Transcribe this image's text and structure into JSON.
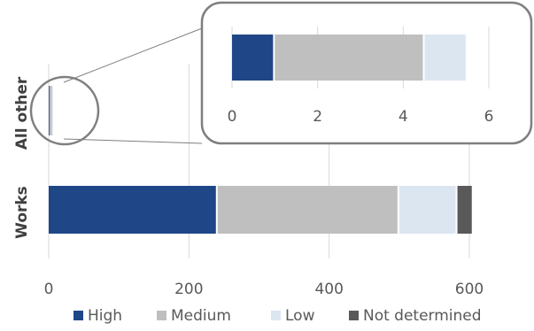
{
  "chart_data": [
    {
      "type": "bar",
      "orientation": "horizontal",
      "stacked": true,
      "categories": [
        "All other",
        "Works"
      ],
      "series": [
        {
          "name": "High",
          "values": [
            1,
            241
          ]
        },
        {
          "name": "Medium",
          "values": [
            3.5,
            259
          ]
        },
        {
          "name": "Low",
          "values": [
            1,
            83
          ]
        },
        {
          "name": "Not determined",
          "values": [
            0,
            23
          ]
        }
      ],
      "xlim": [
        0,
        650
      ],
      "x_ticks": [
        "0",
        "200",
        "400",
        "600"
      ],
      "grid": true,
      "legend": "bottom"
    },
    {
      "type": "bar",
      "orientation": "horizontal",
      "stacked": true,
      "role": "inset",
      "categories": [
        "All other"
      ],
      "series": [
        {
          "name": "High",
          "values": [
            1
          ]
        },
        {
          "name": "Medium",
          "values": [
            3.5
          ]
        },
        {
          "name": "Low",
          "values": [
            1
          ]
        }
      ],
      "xlim": [
        0,
        6.6
      ],
      "x_ticks": [
        "0",
        "2",
        "4",
        "6"
      ],
      "grid": true
    }
  ],
  "colors": {
    "High": "#1f4788",
    "Medium": "#bfbfbf",
    "Low": "#dce6f1",
    "Not determined": "#595959",
    "grid": "#d9d9d9",
    "callout": "#7f7f7f",
    "axis_text": "#595959",
    "category_text": "#404040"
  },
  "legend": {
    "items": [
      {
        "label": "High",
        "color": "#1f4788"
      },
      {
        "label": "Medium",
        "color": "#bfbfbf"
      },
      {
        "label": "Low",
        "color": "#dce6f1"
      },
      {
        "label": "Not determined",
        "color": "#595959"
      }
    ]
  }
}
